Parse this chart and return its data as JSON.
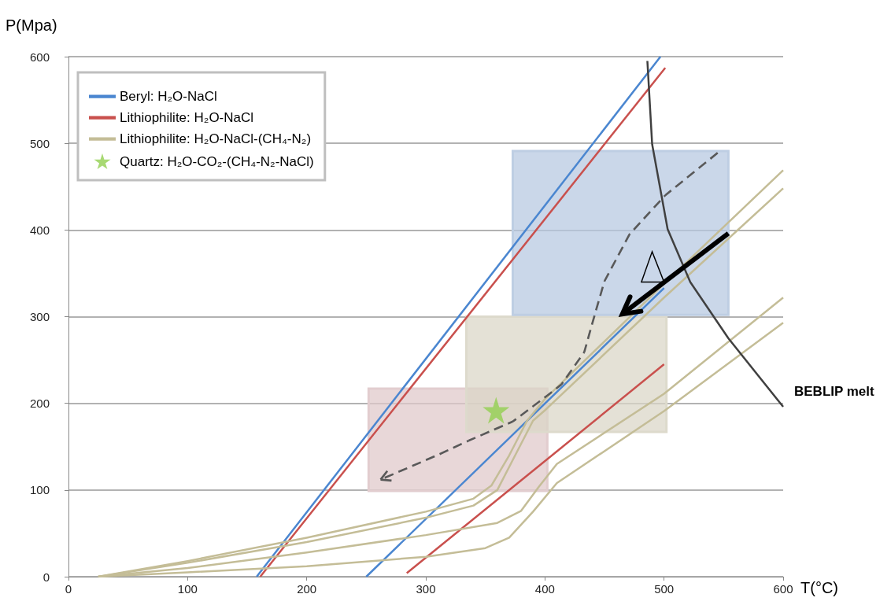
{
  "chart_data": {
    "type": "line",
    "xlabel": "T(°C)",
    "ylabel": "P(Mpa)",
    "xlim": [
      0,
      600
    ],
    "ylim": [
      0,
      600
    ],
    "xticks": [
      0,
      100,
      200,
      300,
      400,
      500,
      600
    ],
    "yticks": [
      0,
      100,
      200,
      300,
      400,
      500,
      600
    ],
    "grid": "y",
    "legend": "top left",
    "marker": "none",
    "series": [
      {
        "type": "area",
        "color": "#dfc7c9",
        "x": [
          252,
          402,
          402,
          252,
          252
        ],
        "values": [
          99,
          99,
          217,
          217,
          99
        ]
      },
      {
        "type": "area",
        "color": "#d9d6c6",
        "x": [
          334,
          502,
          502,
          334,
          334
        ],
        "values": [
          167,
          167,
          300,
          300,
          167
        ]
      },
      {
        "type": "area",
        "color": "#b6c8e0",
        "x": [
          373,
          554,
          554,
          373,
          373
        ],
        "values": [
          302,
          302,
          491,
          491,
          302
        ]
      },
      {
        "name": "Beryl: H₂O-NaCl",
        "color": "#4a86d0",
        "x": [
          158,
          497
        ],
        "values": [
          0,
          600
        ]
      },
      {
        "color": "#4a86d0",
        "x": [
          250,
          500
        ],
        "values": [
          0,
          333
        ]
      },
      {
        "name": "Lithiophilite: H₂O-NaCl",
        "color": "#c9504d",
        "x": [
          161,
          501
        ],
        "values": [
          0,
          587
        ]
      },
      {
        "color": "#c9504d",
        "x": [
          284,
          500
        ],
        "values": [
          4,
          245
        ]
      },
      {
        "name": "Lithiophilite: H₂O-NaCl-(CH₄-N₂)",
        "color": "#c4bd97",
        "x": [
          25,
          100,
          200,
          300,
          340,
          355,
          370,
          385,
          400,
          500,
          600
        ],
        "values": [
          0,
          18,
          45,
          75,
          90,
          105,
          140,
          180,
          205,
          338,
          469
        ]
      },
      {
        "color": "#c4bd97",
        "x": [
          25,
          100,
          200,
          300,
          340,
          360,
          375,
          390,
          400,
          500,
          600
        ],
        "values": [
          0,
          16,
          40,
          68,
          82,
          100,
          140,
          180,
          192,
          322,
          448
        ]
      },
      {
        "color": "#c4bd97",
        "x": [
          25,
          100,
          200,
          300,
          360,
          380,
          395,
          410,
          500,
          600
        ],
        "values": [
          0,
          10,
          28,
          48,
          62,
          76,
          104,
          130,
          211,
          322
        ]
      },
      {
        "color": "#c4bd97",
        "x": [
          25,
          100,
          200,
          300,
          350,
          370,
          390,
          410,
          500,
          600
        ],
        "values": [
          0,
          5,
          12,
          23,
          33,
          45,
          75,
          108,
          191,
          293
        ]
      },
      {
        "name": "BEBLIP melt",
        "color": "#404040",
        "x": [
          486,
          490,
          503,
          522,
          554,
          600
        ],
        "values": [
          595,
          499,
          401,
          340,
          275,
          196
        ]
      },
      {
        "type": "scatter",
        "name": "Quartz: H₂O-CO₂-(CH₄-N₂-NaCl)",
        "color": "#92d050",
        "marker": "star",
        "x": [
          359
        ],
        "values": [
          192
        ]
      }
    ]
  }
}
